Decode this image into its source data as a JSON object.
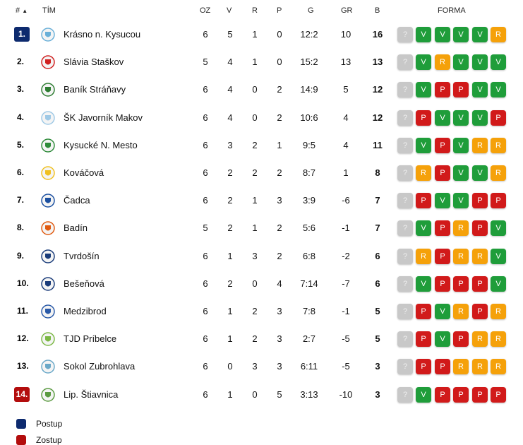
{
  "header": {
    "rank": "#",
    "team": "TÍM",
    "played": "OZ",
    "wins": "V",
    "draws": "R",
    "losses": "P",
    "goals": "G",
    "goal_diff": "GR",
    "points": "B",
    "form": "FORMA"
  },
  "rows": [
    {
      "rank": "1.",
      "team": "Krásno n. Kysucou",
      "oz": "6",
      "v": "5",
      "r": "1",
      "p": "0",
      "g": "12:2",
      "gr": "10",
      "b": "16",
      "form": [
        "?",
        "V",
        "V",
        "V",
        "V",
        "R"
      ],
      "status": "q"
    },
    {
      "rank": "2.",
      "team": "Slávia Staškov",
      "oz": "5",
      "v": "4",
      "r": "1",
      "p": "0",
      "g": "15:2",
      "gr": "13",
      "b": "13",
      "form": [
        "?",
        "V",
        "R",
        "V",
        "V",
        "V"
      ],
      "status": ""
    },
    {
      "rank": "3.",
      "team": "Baník Stráňavy",
      "oz": "6",
      "v": "4",
      "r": "0",
      "p": "2",
      "g": "14:9",
      "gr": "5",
      "b": "12",
      "form": [
        "?",
        "V",
        "P",
        "P",
        "V",
        "V"
      ],
      "status": ""
    },
    {
      "rank": "4.",
      "team": "ŠK Javorník Makov",
      "oz": "6",
      "v": "4",
      "r": "0",
      "p": "2",
      "g": "10:6",
      "gr": "4",
      "b": "12",
      "form": [
        "?",
        "P",
        "V",
        "V",
        "V",
        "P"
      ],
      "status": ""
    },
    {
      "rank": "5.",
      "team": "Kysucké N. Mesto",
      "oz": "6",
      "v": "3",
      "r": "2",
      "p": "1",
      "g": "9:5",
      "gr": "4",
      "b": "11",
      "form": [
        "?",
        "V",
        "P",
        "V",
        "R",
        "R"
      ],
      "status": ""
    },
    {
      "rank": "6.",
      "team": "Kováčová",
      "oz": "6",
      "v": "2",
      "r": "2",
      "p": "2",
      "g": "8:7",
      "gr": "1",
      "b": "8",
      "form": [
        "?",
        "R",
        "P",
        "V",
        "V",
        "R"
      ],
      "status": ""
    },
    {
      "rank": "7.",
      "team": "Čadca",
      "oz": "6",
      "v": "2",
      "r": "1",
      "p": "3",
      "g": "3:9",
      "gr": "-6",
      "b": "7",
      "form": [
        "?",
        "P",
        "V",
        "V",
        "P",
        "P"
      ],
      "status": ""
    },
    {
      "rank": "8.",
      "team": "Badín",
      "oz": "5",
      "v": "2",
      "r": "1",
      "p": "2",
      "g": "5:6",
      "gr": "-1",
      "b": "7",
      "form": [
        "?",
        "V",
        "P",
        "R",
        "P",
        "V"
      ],
      "status": ""
    },
    {
      "rank": "9.",
      "team": "Tvrdošín",
      "oz": "6",
      "v": "1",
      "r": "3",
      "p": "2",
      "g": "6:8",
      "gr": "-2",
      "b": "6",
      "form": [
        "?",
        "R",
        "P",
        "R",
        "R",
        "V"
      ],
      "status": ""
    },
    {
      "rank": "10.",
      "team": "Bešeňová",
      "oz": "6",
      "v": "2",
      "r": "0",
      "p": "4",
      "g": "7:14",
      "gr": "-7",
      "b": "6",
      "form": [
        "?",
        "V",
        "P",
        "P",
        "P",
        "V"
      ],
      "status": ""
    },
    {
      "rank": "11.",
      "team": "Medzibrod",
      "oz": "6",
      "v": "1",
      "r": "2",
      "p": "3",
      "g": "7:8",
      "gr": "-1",
      "b": "5",
      "form": [
        "?",
        "P",
        "V",
        "R",
        "P",
        "R"
      ],
      "status": ""
    },
    {
      "rank": "12.",
      "team": "TJD Príbelce",
      "oz": "6",
      "v": "1",
      "r": "2",
      "p": "3",
      "g": "2:7",
      "gr": "-5",
      "b": "5",
      "form": [
        "?",
        "P",
        "V",
        "P",
        "R",
        "R"
      ],
      "status": ""
    },
    {
      "rank": "13.",
      "team": "Sokol Zubrohlava",
      "oz": "6",
      "v": "0",
      "r": "3",
      "p": "3",
      "g": "6:11",
      "gr": "-5",
      "b": "3",
      "form": [
        "?",
        "P",
        "P",
        "R",
        "R",
        "R"
      ],
      "status": ""
    },
    {
      "rank": "14.",
      "team": "Lip. Štiavnica",
      "oz": "6",
      "v": "1",
      "r": "0",
      "p": "5",
      "g": "3:13",
      "gr": "-10",
      "b": "3",
      "form": [
        "?",
        "V",
        "P",
        "P",
        "P",
        "P"
      ],
      "status": "r"
    }
  ],
  "legend": [
    {
      "label": "Postup",
      "color": "#0d2a6e"
    },
    {
      "label": "Zostup",
      "color": "#b30d0d"
    }
  ],
  "colors": {
    "win": "#1f9d3a",
    "loss": "#d11a1a",
    "draw": "#f5a10a",
    "unknown": "#c8c8c8"
  }
}
